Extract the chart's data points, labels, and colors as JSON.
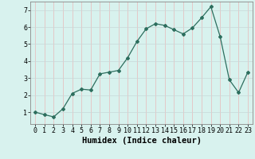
{
  "x": [
    0,
    1,
    2,
    3,
    4,
    5,
    6,
    7,
    8,
    9,
    10,
    11,
    12,
    13,
    14,
    15,
    16,
    17,
    18,
    19,
    20,
    21,
    22,
    23
  ],
  "y": [
    1.0,
    0.85,
    0.72,
    1.2,
    2.1,
    2.35,
    2.3,
    3.25,
    3.35,
    3.45,
    4.2,
    5.15,
    5.9,
    6.2,
    6.1,
    5.85,
    5.6,
    5.95,
    6.55,
    7.2,
    5.45,
    2.9,
    2.15,
    3.35
  ],
  "line_color": "#2d6e5e",
  "marker": "D",
  "markersize": 2.0,
  "linewidth": 0.9,
  "xlabel": "Humidex (Indice chaleur)",
  "xlim": [
    -0.5,
    23.5
  ],
  "ylim": [
    0.3,
    7.5
  ],
  "yticks": [
    1,
    2,
    3,
    4,
    5,
    6,
    7
  ],
  "xticks": [
    0,
    1,
    2,
    3,
    4,
    5,
    6,
    7,
    8,
    9,
    10,
    11,
    12,
    13,
    14,
    15,
    16,
    17,
    18,
    19,
    20,
    21,
    22,
    23
  ],
  "bg_color": "#d8f2ee",
  "grid_color_v": "#e8b8b8",
  "grid_color_h": "#c8d8d8",
  "xlabel_fontsize": 7.5,
  "tick_fontsize": 6.0
}
